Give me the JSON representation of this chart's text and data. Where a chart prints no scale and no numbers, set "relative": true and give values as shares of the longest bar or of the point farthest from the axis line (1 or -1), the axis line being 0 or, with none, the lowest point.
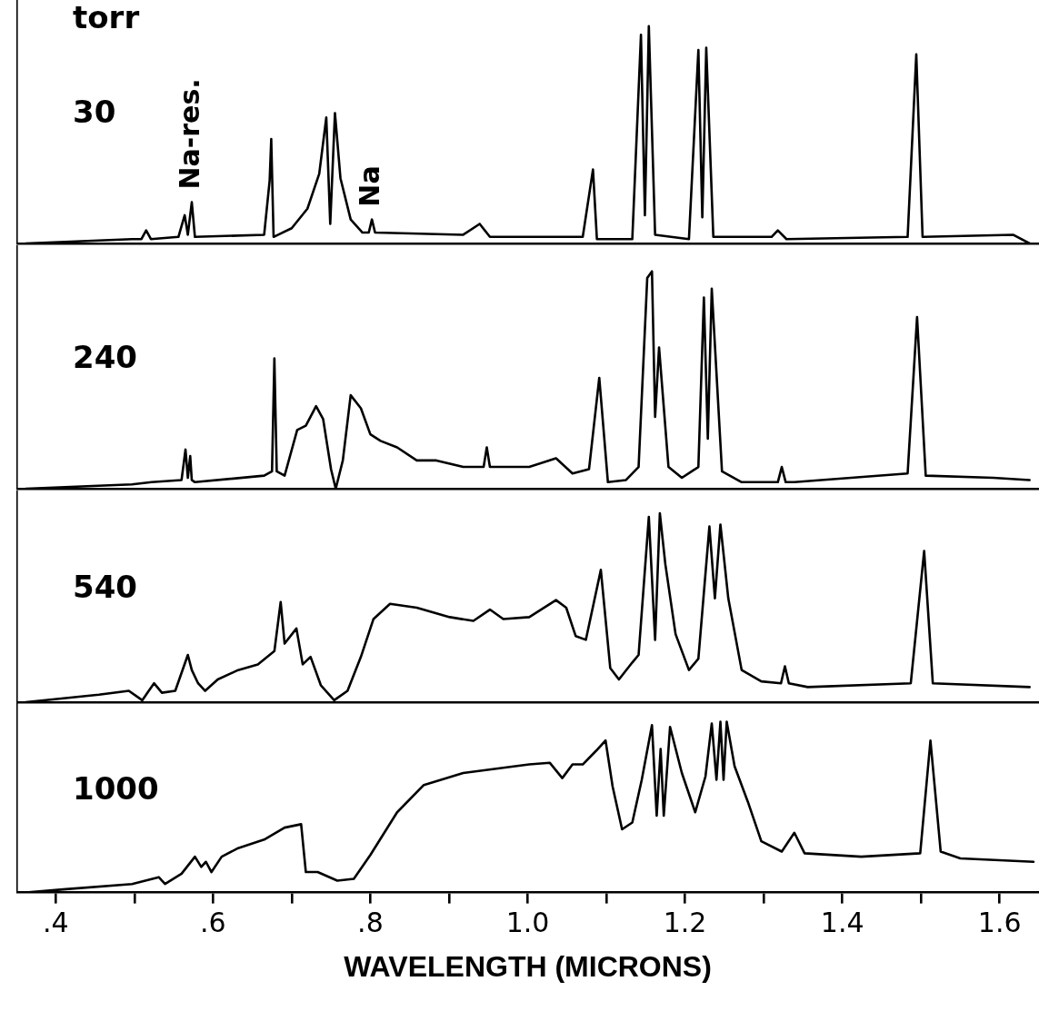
{
  "chart_data": [
    {
      "type": "line",
      "relative": true,
      "tick_labels": false,
      "xlim": [
        0.35,
        1.65
      ],
      "annotations": [
        "torr",
        "30",
        {
          "text": "Na-res.",
          "x": 0.573,
          "y": 0.19
        },
        {
          "text": "Na",
          "x": 0.802,
          "y": 0.11
        }
      ],
      "series": [
        {
          "color": "#000000",
          "x": [
            0.362,
            0.497,
            0.509,
            0.515,
            0.521,
            0.556,
            0.564,
            0.568,
            0.573,
            0.577,
            0.665,
            0.672,
            0.674,
            0.677,
            0.7,
            0.72,
            0.735,
            0.744,
            0.749,
            0.755,
            0.762,
            0.775,
            0.79,
            0.798,
            0.802,
            0.806,
            0.918,
            0.939,
            0.952,
            1.07,
            1.083,
            1.088,
            1.133,
            1.144,
            1.149,
            1.154,
            1.162,
            1.205,
            1.217,
            1.222,
            1.227,
            1.236,
            1.31,
            1.318,
            1.329,
            1.483,
            1.494,
            1.502,
            1.617,
            1.638
          ],
          "values": [
            0,
            0.02,
            0.02,
            0.06,
            0.02,
            0.03,
            0.13,
            0.04,
            0.19,
            0.03,
            0.04,
            0.29,
            0.48,
            0.03,
            0.07,
            0.16,
            0.32,
            0.58,
            0.09,
            0.6,
            0.3,
            0.11,
            0.05,
            0.05,
            0.11,
            0.05,
            0.04,
            0.09,
            0.03,
            0.03,
            0.34,
            0.02,
            0.02,
            0.96,
            0.13,
            1,
            0.04,
            0.02,
            0.89,
            0.12,
            0.9,
            0.03,
            0.03,
            0.06,
            0.02,
            0.03,
            0.87,
            0.03,
            0.04,
            0
          ]
        }
      ]
    },
    {
      "type": "line",
      "relative": true,
      "tick_labels": false,
      "xlim": [
        0.35,
        1.65
      ],
      "annotations": [
        "240"
      ],
      "series": [
        {
          "color": "#000000",
          "x": [
            0.362,
            0.497,
            0.522,
            0.56,
            0.565,
            0.568,
            0.571,
            0.573,
            0.577,
            0.665,
            0.675,
            0.678,
            0.681,
            0.691,
            0.707,
            0.718,
            0.731,
            0.74,
            0.75,
            0.756,
            0.765,
            0.775,
            0.788,
            0.8,
            0.813,
            0.834,
            0.859,
            0.884,
            0.918,
            0.944,
            0.948,
            0.952,
            1.002,
            1.036,
            1.057,
            1.078,
            1.091,
            1.102,
            1.125,
            1.141,
            1.152,
            1.158,
            1.162,
            1.167,
            1.179,
            1.196,
            1.217,
            1.224,
            1.229,
            1.234,
            1.247,
            1.272,
            1.318,
            1.323,
            1.328,
            1.339,
            1.483,
            1.495,
            1.506,
            1.592,
            1.638
          ],
          "values": [
            0,
            0.02,
            0.03,
            0.04,
            0.18,
            0.05,
            0.15,
            0.04,
            0.03,
            0.06,
            0.08,
            0.6,
            0.08,
            0.06,
            0.27,
            0.29,
            0.38,
            0.32,
            0.09,
            0,
            0.13,
            0.43,
            0.37,
            0.25,
            0.22,
            0.19,
            0.13,
            0.13,
            0.1,
            0.1,
            0.19,
            0.1,
            0.1,
            0.14,
            0.07,
            0.09,
            0.51,
            0.03,
            0.04,
            0.1,
            0.97,
            1,
            0.33,
            0.65,
            0.1,
            0.05,
            0.1,
            0.88,
            0.23,
            0.92,
            0.08,
            0.03,
            0.03,
            0.1,
            0.03,
            0.03,
            0.07,
            0.79,
            0.06,
            0.05,
            0.04
          ]
        }
      ]
    },
    {
      "type": "line",
      "relative": true,
      "tick_labels": false,
      "xlim": [
        0.35,
        1.65
      ],
      "annotations": [
        "540"
      ],
      "series": [
        {
          "color": "#000000",
          "x": [
            0.362,
            0.455,
            0.493,
            0.51,
            0.525,
            0.535,
            0.552,
            0.568,
            0.573,
            0.581,
            0.59,
            0.606,
            0.632,
            0.657,
            0.678,
            0.686,
            0.691,
            0.706,
            0.714,
            0.724,
            0.737,
            0.754,
            0.771,
            0.788,
            0.804,
            0.825,
            0.859,
            0.901,
            0.931,
            0.952,
            0.969,
            1.002,
            1.036,
            1.049,
            1.061,
            1.074,
            1.093,
            1.105,
            1.116,
            1.133,
            1.141,
            1.154,
            1.162,
            1.168,
            1.175,
            1.188,
            1.205,
            1.217,
            1.231,
            1.238,
            1.245,
            1.255,
            1.272,
            1.297,
            1.322,
            1.327,
            1.332,
            1.356,
            1.487,
            1.504,
            1.515,
            1.638
          ],
          "values": [
            0,
            0.04,
            0.06,
            0.01,
            0.1,
            0.05,
            0.06,
            0.25,
            0.17,
            0.1,
            0.06,
            0.12,
            0.17,
            0.2,
            0.27,
            0.53,
            0.31,
            0.39,
            0.2,
            0.24,
            0.09,
            0.01,
            0.06,
            0.24,
            0.44,
            0.52,
            0.5,
            0.45,
            0.43,
            0.49,
            0.44,
            0.45,
            0.54,
            0.5,
            0.35,
            0.33,
            0.7,
            0.18,
            0.12,
            0.21,
            0.25,
            0.98,
            0.33,
            1,
            0.73,
            0.36,
            0.17,
            0.23,
            0.93,
            0.55,
            0.94,
            0.55,
            0.17,
            0.11,
            0.1,
            0.19,
            0.1,
            0.08,
            0.1,
            0.8,
            0.1,
            0.08
          ]
        }
      ]
    },
    {
      "type": "line",
      "relative": true,
      "tick_labels": "x",
      "xlim": [
        0.35,
        1.65
      ],
      "xlabel": "WAVELENGTH (MICRONS)",
      "annotations": [
        "1000"
      ],
      "xticks": [
        {
          "value": 0.4,
          "label": ".4"
        },
        {
          "value": 0.5,
          "label": null
        },
        {
          "value": 0.6,
          "label": ".6"
        },
        {
          "value": 0.7,
          "label": null
        },
        {
          "value": 0.8,
          "label": ".8"
        },
        {
          "value": 0.9,
          "label": null
        },
        {
          "value": 1.0,
          "label": "1.0"
        },
        {
          "value": 1.1,
          "label": null
        },
        1.2,
        {
          "value": 1.3,
          "label": null
        },
        1.4,
        {
          "value": 1.5,
          "label": null
        },
        1.6
      ],
      "series": [
        {
          "color": "#000000",
          "x": [
            0.362,
            0.413,
            0.497,
            0.531,
            0.539,
            0.56,
            0.577,
            0.585,
            0.591,
            0.598,
            0.611,
            0.632,
            0.665,
            0.691,
            0.712,
            0.718,
            0.733,
            0.758,
            0.779,
            0.8,
            0.834,
            0.868,
            0.918,
            1.002,
            1.028,
            1.044,
            1.057,
            1.07,
            1.087,
            1.099,
            1.108,
            1.12,
            1.133,
            1.145,
            1.158,
            1.164,
            1.169,
            1.173,
            1.181,
            1.196,
            1.213,
            1.226,
            1.234,
            1.24,
            1.245,
            1.249,
            1.253,
            1.263,
            1.28,
            1.297,
            1.323,
            1.339,
            1.352,
            1.424,
            1.499,
            1.512,
            1.525,
            1.55,
            1.643
          ],
          "values": [
            0,
            0.02,
            0.05,
            0.09,
            0.05,
            0.11,
            0.21,
            0.15,
            0.18,
            0.12,
            0.21,
            0.26,
            0.31,
            0.38,
            0.4,
            0.12,
            0.12,
            0.07,
            0.08,
            0.22,
            0.47,
            0.63,
            0.7,
            0.75,
            0.76,
            0.67,
            0.75,
            0.75,
            0.83,
            0.89,
            0.62,
            0.37,
            0.41,
            0.66,
            0.98,
            0.45,
            0.84,
            0.45,
            0.97,
            0.7,
            0.47,
            0.68,
            0.99,
            0.66,
            1,
            0.66,
            1,
            0.74,
            0.53,
            0.3,
            0.24,
            0.35,
            0.23,
            0.21,
            0.23,
            0.89,
            0.24,
            0.2,
            0.18
          ]
        }
      ]
    }
  ]
}
